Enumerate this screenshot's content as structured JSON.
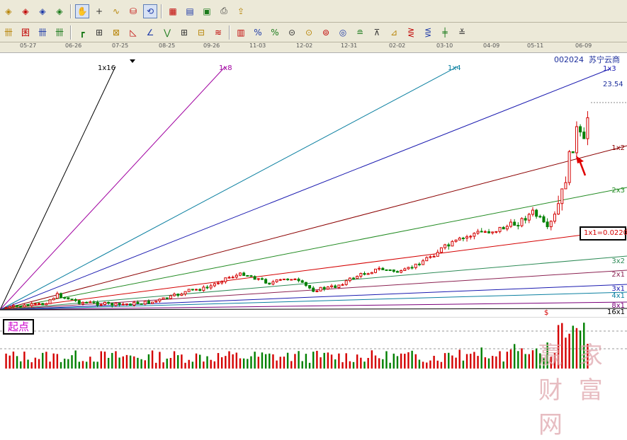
{
  "toolbar1": {
    "groups": [
      [
        {
          "icon": "diamond-arrows-left-icon",
          "glyph": "◈"
        },
        {
          "icon": "diamond-arrows-right-icon",
          "glyph": "◈"
        },
        {
          "icon": "diamond-zoom-in-icon",
          "glyph": "◈"
        },
        {
          "icon": "diamond-zoom-out-icon",
          "glyph": "◈"
        }
      ],
      [
        {
          "icon": "hand-pan-icon",
          "glyph": "✋",
          "pressed": true
        },
        {
          "icon": "crosshair-icon",
          "glyph": "+"
        },
        {
          "icon": "indicator-curve-icon",
          "glyph": "∿"
        },
        {
          "icon": "stock-select-icon",
          "glyph": "⛁"
        },
        {
          "icon": "refresh-grid-icon",
          "glyph": "⟲",
          "pressed": true
        }
      ],
      [
        {
          "icon": "calendar-21-icon",
          "glyph": "▦"
        },
        {
          "icon": "grid-table-icon",
          "glyph": "▤"
        },
        {
          "icon": "save-disk-icon",
          "glyph": "▣"
        },
        {
          "icon": "print-icon",
          "glyph": "⎙"
        },
        {
          "icon": "export-icon",
          "glyph": "⇪"
        }
      ]
    ]
  },
  "toolbar2": {
    "groups": [
      [
        {
          "icon": "gann-line-icon",
          "glyph": "卌"
        },
        {
          "icon": "gann-box-icon",
          "glyph": "囷"
        },
        {
          "icon": "gann-grid-icon",
          "glyph": "卌"
        },
        {
          "icon": "gann-fan-icon",
          "glyph": "卌"
        }
      ],
      [
        {
          "icon": "gann-square-icon",
          "glyph": "┏"
        },
        {
          "icon": "gann-square-rotated-icon",
          "glyph": "⊞"
        },
        {
          "icon": "gann-square-fixed-icon",
          "glyph": "⊠"
        },
        {
          "icon": "gann-fan-tool-icon",
          "glyph": "◺"
        },
        {
          "icon": "angle-line-icon",
          "glyph": "∠"
        },
        {
          "icon": "channel-zigzag-icon",
          "glyph": "⋁"
        },
        {
          "icon": "speed-line-icon",
          "glyph": "⊞"
        },
        {
          "icon": "cycle-grid-icon",
          "glyph": "⊟"
        },
        {
          "icon": "fibonacci-fan-icon",
          "glyph": "≋"
        }
      ],
      [
        {
          "icon": "percent-lines-icon",
          "glyph": "▥"
        },
        {
          "icon": "percent-fan-icon",
          "glyph": "%"
        },
        {
          "icon": "percent-icon",
          "glyph": "%"
        },
        {
          "icon": "gold-ratio-icon",
          "glyph": "⊝"
        },
        {
          "icon": "gold-circle-icon",
          "glyph": "⊙"
        },
        {
          "icon": "gold-arc-icon",
          "glyph": "⊚"
        },
        {
          "icon": "gold-target-icon",
          "glyph": "◎"
        },
        {
          "icon": "gold-level-icon",
          "glyph": "≘"
        },
        {
          "icon": "resist-line-icon",
          "glyph": "⊼"
        },
        {
          "icon": "band-line-icon",
          "glyph": "⊿"
        },
        {
          "icon": "wave-ruler-icon",
          "glyph": "⋛"
        },
        {
          "icon": "cycle-ruler-icon",
          "glyph": "⋚"
        },
        {
          "icon": "segment-icon",
          "glyph": "╪"
        },
        {
          "icon": "text-note-icon",
          "glyph": "≚"
        }
      ]
    ]
  },
  "date_axis": [
    "05-27",
    "06-26",
    "07-25",
    "08-25",
    "09-26",
    "11-03",
    "12-02",
    "12-31",
    "02-02",
    "03-10",
    "04-09",
    "05-11",
    "06-09"
  ],
  "stock": {
    "code": "002024",
    "name": "苏宁云商"
  },
  "price_label": "23.54",
  "fan_upper": [
    "1x16",
    "1x8",
    "1x4",
    "1x3"
  ],
  "fan_right": [
    "1x2",
    "2x3",
    "3x2",
    "2x1",
    "3x1",
    "4x1",
    "8x1",
    "16x1"
  ],
  "boxed_label": "1x1=0.0220",
  "start_label": "起点",
  "volume_marker": "$",
  "watermark": "赢 家 财 富 网",
  "colors": {
    "up": "#d40000",
    "down": "#008000",
    "fan_1x16": "#000000",
    "fan_1x8": "#a000a0",
    "fan_1x4": "#0a7fa0",
    "fan_1x3": "#1a1ab0",
    "fan_1x2": "#8b0000",
    "fan_2x3": "#228b22",
    "fan_1x1": "#d40000",
    "fan_3x2": "#2e8b57",
    "fan_2x1": "#8b2252",
    "fan_3x1": "#1a1ab0",
    "fan_4x1": "#0a7fa0",
    "fan_8x1": "#7a007a",
    "fan_16x1": "#000000"
  }
}
